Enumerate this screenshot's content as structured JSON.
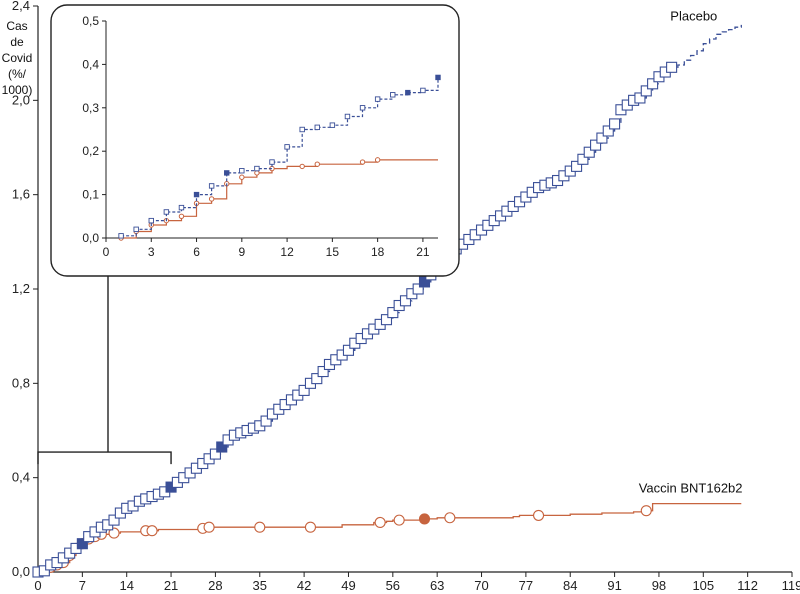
{
  "chart_data": {
    "type": "line",
    "title": "",
    "ylabel_lines": [
      "Cas",
      "de",
      "Covid",
      "(%/",
      "1000)"
    ],
    "xlabel": "",
    "xlim": [
      0,
      119
    ],
    "ylim": [
      0,
      2.4
    ],
    "x_ticks": [
      0,
      7,
      14,
      21,
      28,
      35,
      42,
      49,
      56,
      63,
      70,
      77,
      84,
      91,
      98,
      105,
      112,
      119
    ],
    "y_ticks": [
      0,
      0.4,
      0.8,
      1.2,
      1.6,
      2.0,
      2.4
    ],
    "y_tick_labels": [
      "0,0",
      "0,4",
      "0,8",
      "1,2",
      "1,6",
      "2,0",
      "2,4"
    ],
    "grid": false,
    "legend": "inline labels at line ends",
    "series": [
      {
        "name": "Placebo",
        "color": "#3a4f97",
        "line_style": "dashed",
        "marker": "square",
        "x": [
          0,
          1,
          2,
          3,
          4,
          5,
          6,
          7,
          8,
          9,
          10,
          11,
          12,
          13,
          14,
          15,
          16,
          17,
          18,
          19,
          20,
          21,
          22,
          23,
          24,
          25,
          26,
          27,
          28,
          29,
          30,
          31,
          32,
          33,
          34,
          35,
          36,
          37,
          38,
          39,
          40,
          41,
          42,
          43,
          44,
          45,
          46,
          47,
          48,
          49,
          50,
          51,
          52,
          53,
          54,
          55,
          56,
          57,
          58,
          59,
          60,
          61,
          62,
          63,
          64,
          65,
          66,
          67,
          68,
          69,
          70,
          71,
          72,
          73,
          74,
          75,
          76,
          77,
          78,
          79,
          80,
          81,
          82,
          83,
          84,
          85,
          86,
          87,
          88,
          89,
          90,
          91,
          92,
          93,
          94,
          95,
          96,
          97,
          98,
          99,
          100,
          101,
          102,
          103,
          104,
          105,
          106,
          107,
          108,
          109,
          110,
          111
        ],
        "y": [
          0,
          0.005,
          0.03,
          0.04,
          0.06,
          0.08,
          0.1,
          0.12,
          0.15,
          0.17,
          0.19,
          0.2,
          0.22,
          0.25,
          0.27,
          0.28,
          0.3,
          0.31,
          0.32,
          0.33,
          0.34,
          0.36,
          0.38,
          0.4,
          0.42,
          0.44,
          0.46,
          0.48,
          0.5,
          0.53,
          0.56,
          0.58,
          0.59,
          0.6,
          0.61,
          0.62,
          0.64,
          0.67,
          0.69,
          0.71,
          0.73,
          0.75,
          0.77,
          0.8,
          0.82,
          0.85,
          0.88,
          0.9,
          0.92,
          0.94,
          0.97,
          0.99,
          1.01,
          1.03,
          1.05,
          1.07,
          1.1,
          1.13,
          1.15,
          1.18,
          1.2,
          1.23,
          1.26,
          1.3,
          1.32,
          1.34,
          1.37,
          1.39,
          1.41,
          1.43,
          1.45,
          1.47,
          1.49,
          1.51,
          1.53,
          1.55,
          1.57,
          1.59,
          1.61,
          1.63,
          1.64,
          1.65,
          1.66,
          1.68,
          1.7,
          1.72,
          1.75,
          1.78,
          1.81,
          1.84,
          1.87,
          1.9,
          1.96,
          1.98,
          2.0,
          2.01,
          2.04,
          2.07,
          2.1,
          2.12,
          2.14,
          2.15,
          2.17,
          2.19,
          2.21,
          2.24,
          2.26,
          2.28,
          2.29,
          2.3,
          2.31,
          2.32
        ],
        "filled_x": [
          7,
          21,
          29,
          61
        ]
      },
      {
        "name": "Vaccin BNT162b2",
        "color": "#c7643f",
        "line_style": "solid",
        "marker": "circle",
        "x": [
          0,
          2,
          3,
          4,
          5,
          6,
          7,
          8,
          9,
          10,
          11,
          12,
          13,
          14,
          15,
          17,
          18,
          19,
          20,
          22,
          25,
          26,
          27,
          29,
          30,
          31,
          33,
          34,
          35,
          36,
          39,
          40,
          41,
          42,
          45,
          46,
          47,
          48,
          49,
          50,
          52,
          53,
          55,
          56,
          57,
          58,
          60,
          61,
          62,
          63,
          64,
          66,
          67,
          68,
          70,
          73,
          74,
          75,
          76,
          78,
          81,
          82,
          83,
          84,
          85,
          86,
          88,
          89,
          90,
          91,
          92,
          93,
          94,
          95,
          96,
          97,
          98,
          99,
          100,
          101,
          102,
          103,
          104,
          105,
          106,
          107,
          108,
          109,
          110,
          111
        ],
        "y": [
          0,
          0.02,
          0.03,
          0.04,
          0.07,
          0.1,
          0.12,
          0.14,
          0.15,
          0.16,
          0.16,
          0.165,
          0.17,
          0.17,
          0.17,
          0.175,
          0.175,
          0.18,
          0.18,
          0.18,
          0.18,
          0.185,
          0.19,
          0.19,
          0.19,
          0.19,
          0.19,
          0.19,
          0.19,
          0.19,
          0.19,
          0.19,
          0.19,
          0.19,
          0.19,
          0.19,
          0.19,
          0.2,
          0.2,
          0.2,
          0.2,
          0.21,
          0.215,
          0.22,
          0.22,
          0.22,
          0.22,
          0.225,
          0.225,
          0.23,
          0.23,
          0.23,
          0.23,
          0.23,
          0.23,
          0.23,
          0.23,
          0.235,
          0.24,
          0.24,
          0.24,
          0.24,
          0.24,
          0.245,
          0.245,
          0.245,
          0.245,
          0.25,
          0.25,
          0.25,
          0.25,
          0.25,
          0.255,
          0.255,
          0.26,
          0.29,
          0.29,
          0.29,
          0.29,
          0.29,
          0.29,
          0.29,
          0.29,
          0.29,
          0.29,
          0.29,
          0.29,
          0.29,
          0.29,
          0.29
        ],
        "markers_x": [
          0,
          2,
          3,
          4,
          5,
          6,
          7,
          8,
          9,
          10,
          12,
          17,
          18,
          26,
          27,
          35,
          43,
          54,
          57,
          61,
          65,
          79,
          96
        ],
        "filled_x": [
          61
        ]
      }
    ],
    "inset": {
      "type": "line",
      "xlim": [
        0,
        22
      ],
      "ylim": [
        0,
        0.5
      ],
      "x_ticks": [
        0,
        3,
        6,
        9,
        12,
        15,
        18,
        21
      ],
      "y_ticks": [
        0,
        0.1,
        0.2,
        0.3,
        0.4,
        0.5
      ],
      "y_tick_labels": [
        "0,0",
        "0,1",
        "0,2",
        "0,3",
        "0,4",
        "0,5"
      ],
      "zoom_range_x": [
        0,
        21
      ],
      "series": [
        {
          "name": "Placebo",
          "x": [
            1,
            2,
            3,
            4,
            5,
            6,
            7,
            8,
            9,
            10,
            11,
            12,
            13,
            14,
            15,
            16,
            17,
            18,
            19,
            20,
            21,
            22
          ],
          "y": [
            0.005,
            0.02,
            0.04,
            0.06,
            0.07,
            0.1,
            0.12,
            0.15,
            0.155,
            0.16,
            0.175,
            0.21,
            0.25,
            0.255,
            0.26,
            0.28,
            0.3,
            0.32,
            0.33,
            0.335,
            0.34,
            0.37
          ],
          "filled_x": [
            6,
            8,
            20,
            22
          ]
        },
        {
          "name": "Vaccin BNT162b2",
          "x": [
            1,
            2,
            3,
            4,
            5,
            6,
            7,
            8,
            9,
            10,
            11,
            12,
            13,
            14,
            15,
            16,
            17,
            18,
            19,
            20,
            21,
            22
          ],
          "y": [
            0,
            0.015,
            0.03,
            0.04,
            0.05,
            0.08,
            0.09,
            0.125,
            0.14,
            0.15,
            0.16,
            0.165,
            0.165,
            0.17,
            0.17,
            0.17,
            0.175,
            0.18,
            0.18,
            0.18,
            0.18,
            0.18
          ],
          "markers_x": [
            1,
            2,
            3,
            4,
            5,
            6,
            7,
            8,
            9,
            10,
            11,
            13,
            14,
            17,
            18
          ]
        }
      ]
    }
  }
}
